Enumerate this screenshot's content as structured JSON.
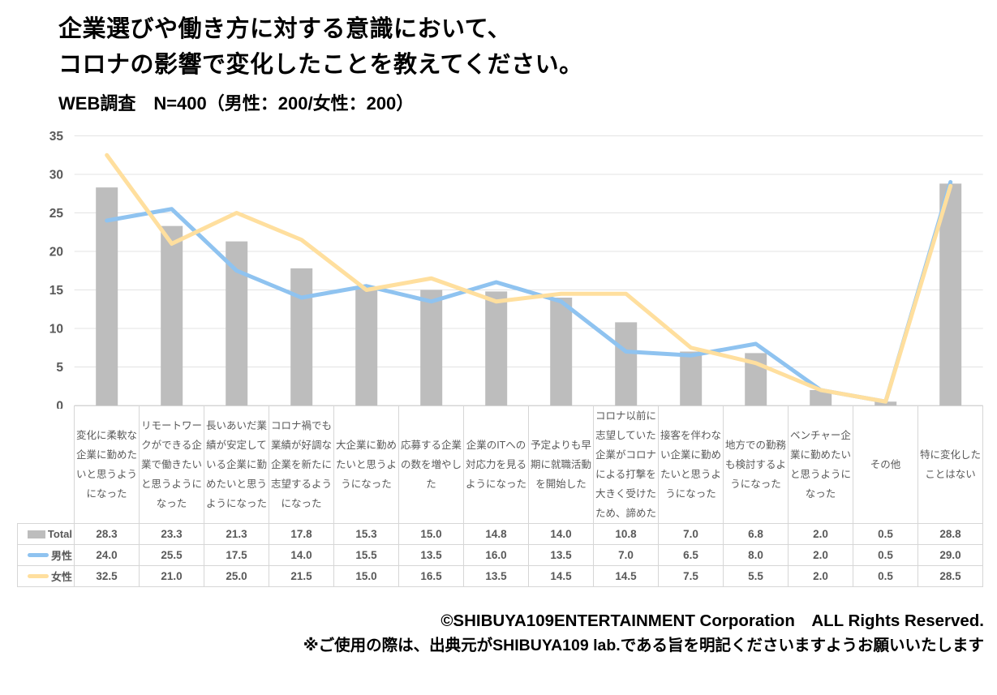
{
  "title": {
    "line1": "企業選びや働き方に対する意識において、",
    "line2": "コロナの影響で変化したことを教えてください。"
  },
  "subtitle": "WEB調査　N=400（男性：200/女性：200）",
  "chart_data": {
    "type": "bar",
    "note": "combo chart: gray bars (Total) with two overlay lines (male/female)",
    "categories": [
      "変化に柔軟な企業に勤めたいと思うようになった",
      "リモートワークができる企業で働きたいと思うようになった",
      "長いあいだ業績が安定している企業に勤めたいと思うようになった",
      "コロナ禍でも業績が好調な企業を新たに志望するようになった",
      "大企業に勤めたいと思うようになった",
      "応募する企業の数を増やした",
      "企業のITへの対応力を見るようになった",
      "予定よりも早期に就職活動を開始した",
      "コロナ以前に志望していた企業がコロナによる打撃を大きく受けたため、諦めた",
      "接客を伴わない企業に勤めたいと思うようになった",
      "地方での勤務も検討するようになった",
      "ベンチャー企業に勤めたいと思うようになった",
      "その他",
      "特に変化したことはない"
    ],
    "series": [
      {
        "name": "Total",
        "kind": "bar",
        "color": "#bdbdbd",
        "values": [
          28.3,
          23.3,
          21.3,
          17.8,
          15.3,
          15.0,
          14.8,
          14.0,
          10.8,
          7.0,
          6.8,
          2.0,
          0.5,
          28.8
        ]
      },
      {
        "name": "男性",
        "kind": "line",
        "color": "#8fc3f0",
        "values": [
          24.0,
          25.5,
          17.5,
          14.0,
          15.5,
          13.5,
          16.0,
          13.5,
          7.0,
          6.5,
          8.0,
          2.0,
          0.5,
          29.0
        ]
      },
      {
        "name": "女性",
        "kind": "line",
        "color": "#ffdf9e",
        "values": [
          32.5,
          21.0,
          25.0,
          21.5,
          15.0,
          16.5,
          13.5,
          14.5,
          14.5,
          7.5,
          5.5,
          2.0,
          0.5,
          28.5
        ]
      }
    ],
    "ylim": [
      0,
      35
    ],
    "ytick_step": 5,
    "grid": true,
    "legend_position": "table-left",
    "colors": {
      "grid_line": "#e3e3e3",
      "axis_line": "#d6d6d6",
      "tick_label": "#595959"
    }
  },
  "footer": {
    "line1": "©SHIBUYA109ENTERTAINMENT Corporation　ALL Rights Reserved.",
    "line2": "※ご使用の際は、出典元がSHIBUYA109 lab.である旨を明記くださいますようお願いいたします"
  }
}
